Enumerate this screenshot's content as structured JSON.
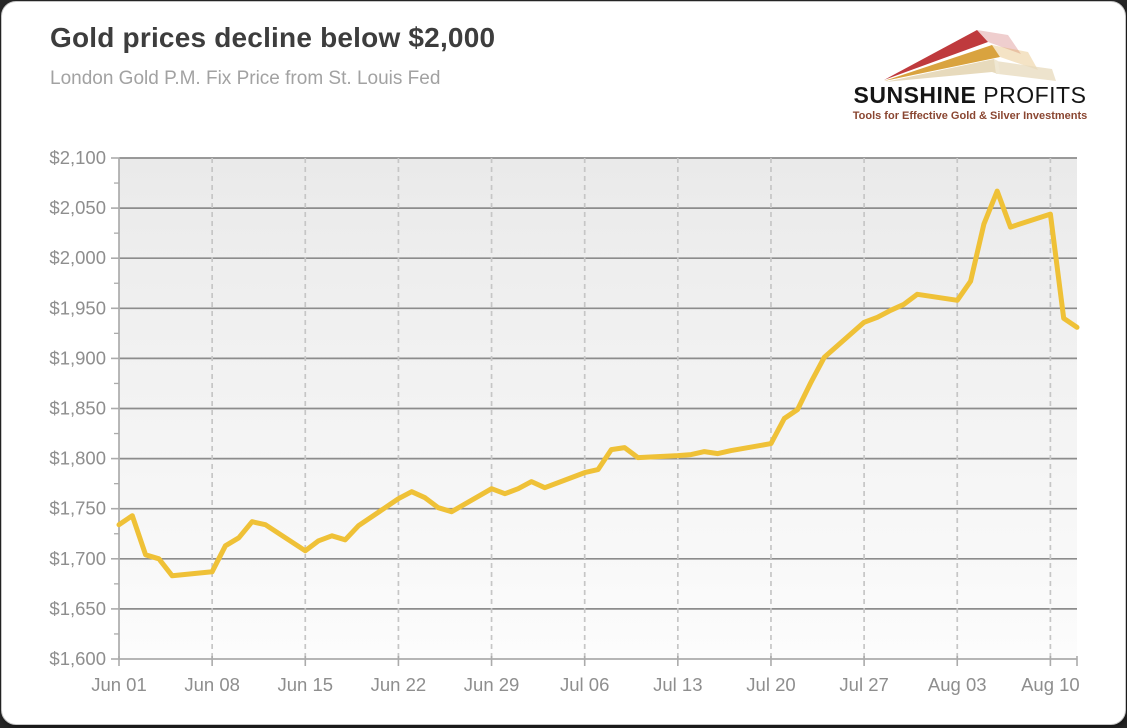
{
  "page": {
    "title": "Gold prices decline below $2,000",
    "subtitle": "London Gold P.M. Fix Price from St. Louis Fed"
  },
  "logo": {
    "brand_bold": "SUNSHINE",
    "brand_regular": " PROFITS",
    "tagline": "Tools for Effective Gold & Silver Investments",
    "colors": {
      "ray_red": "#bf3a3d",
      "ray_gold": "#d9a33f",
      "ray_cream": "#e7dabc",
      "text": "#151515",
      "tagline": "#8a4631"
    }
  },
  "chart_data": {
    "type": "line",
    "title": "Gold prices decline below $2,000",
    "subtitle": "London Gold P.M. Fix Price from St. Louis Fed",
    "legend": "none",
    "grid": {
      "horizontal": "solid",
      "vertical": "dashed"
    },
    "x_axis": {
      "tick_labels": [
        "Jun 01",
        "Jun 08",
        "Jun 15",
        "Jun 22",
        "Jun 29",
        "Jul 06",
        "Jul 13",
        "Jul 20",
        "Jul 27",
        "Aug 03",
        "Aug 10"
      ],
      "tick_days": [
        0,
        7,
        14,
        21,
        28,
        35,
        42,
        49,
        56,
        63,
        70
      ],
      "total_days": 72
    },
    "y_axis": {
      "min": 1600,
      "max": 2100,
      "step": 50,
      "minor_step": 25,
      "unit": "USD",
      "tick_labels": [
        "$2,100",
        "$2,050",
        "$2,000",
        "$1,950",
        "$1,900",
        "$1,850",
        "$1,800",
        "$1,750",
        "$1,700",
        "$1,650",
        "$1,600"
      ]
    },
    "series": [
      {
        "name": "London Gold P.M. Fix Price",
        "color": "#efc137",
        "points": [
          {
            "date": "Jun 01",
            "day": 0,
            "value": 1734
          },
          {
            "date": "Jun 02",
            "day": 1,
            "value": 1743
          },
          {
            "date": "Jun 03",
            "day": 2,
            "value": 1704
          },
          {
            "date": "Jun 04",
            "day": 3,
            "value": 1700
          },
          {
            "date": "Jun 05",
            "day": 4,
            "value": 1683
          },
          {
            "date": "Jun 08",
            "day": 7,
            "value": 1687
          },
          {
            "date": "Jun 09",
            "day": 8,
            "value": 1713
          },
          {
            "date": "Jun 10",
            "day": 9,
            "value": 1721
          },
          {
            "date": "Jun 11",
            "day": 10,
            "value": 1737
          },
          {
            "date": "Jun 12",
            "day": 11,
            "value": 1734
          },
          {
            "date": "Jun 15",
            "day": 14,
            "value": 1708
          },
          {
            "date": "Jun 16",
            "day": 15,
            "value": 1718
          },
          {
            "date": "Jun 17",
            "day": 16,
            "value": 1723
          },
          {
            "date": "Jun 18",
            "day": 17,
            "value": 1719
          },
          {
            "date": "Jun 19",
            "day": 18,
            "value": 1733
          },
          {
            "date": "Jun 22",
            "day": 21,
            "value": 1760
          },
          {
            "date": "Jun 23",
            "day": 22,
            "value": 1767
          },
          {
            "date": "Jun 24",
            "day": 23,
            "value": 1761
          },
          {
            "date": "Jun 25",
            "day": 24,
            "value": 1751
          },
          {
            "date": "Jun 26",
            "day": 25,
            "value": 1747
          },
          {
            "date": "Jun 29",
            "day": 28,
            "value": 1770
          },
          {
            "date": "Jun 30",
            "day": 29,
            "value": 1765
          },
          {
            "date": "Jul 01",
            "day": 30,
            "value": 1770
          },
          {
            "date": "Jul 02",
            "day": 31,
            "value": 1777
          },
          {
            "date": "Jul 03",
            "day": 32,
            "value": 1771
          },
          {
            "date": "Jul 06",
            "day": 35,
            "value": 1786
          },
          {
            "date": "Jul 07",
            "day": 36,
            "value": 1789
          },
          {
            "date": "Jul 08",
            "day": 37,
            "value": 1809
          },
          {
            "date": "Jul 09",
            "day": 38,
            "value": 1811
          },
          {
            "date": "Jul 10",
            "day": 39,
            "value": 1801
          },
          {
            "date": "Jul 13",
            "day": 42,
            "value": 1803
          },
          {
            "date": "Jul 14",
            "day": 43,
            "value": 1804
          },
          {
            "date": "Jul 15",
            "day": 44,
            "value": 1807
          },
          {
            "date": "Jul 16",
            "day": 45,
            "value": 1805
          },
          {
            "date": "Jul 17",
            "day": 46,
            "value": 1808
          },
          {
            "date": "Jul 20",
            "day": 49,
            "value": 1815
          },
          {
            "date": "Jul 21",
            "day": 50,
            "value": 1840
          },
          {
            "date": "Jul 22",
            "day": 51,
            "value": 1849
          },
          {
            "date": "Jul 23",
            "day": 52,
            "value": 1876
          },
          {
            "date": "Jul 24",
            "day": 53,
            "value": 1901
          },
          {
            "date": "Jul 27",
            "day": 56,
            "value": 1936
          },
          {
            "date": "Jul 28",
            "day": 57,
            "value": 1941
          },
          {
            "date": "Jul 29",
            "day": 58,
            "value": 1948
          },
          {
            "date": "Jul 30",
            "day": 59,
            "value": 1954
          },
          {
            "date": "Jul 31",
            "day": 60,
            "value": 1964
          },
          {
            "date": "Aug 03",
            "day": 63,
            "value": 1958
          },
          {
            "date": "Aug 04",
            "day": 64,
            "value": 1977
          },
          {
            "date": "Aug 05",
            "day": 65,
            "value": 2034
          },
          {
            "date": "Aug 06",
            "day": 66,
            "value": 2067
          },
          {
            "date": "Aug 07",
            "day": 67,
            "value": 2031
          },
          {
            "date": "Aug 10",
            "day": 70,
            "value": 2044
          },
          {
            "date": "Aug 11",
            "day": 71,
            "value": 1940
          },
          {
            "date": "Aug 12",
            "day": 72,
            "value": 1931
          }
        ]
      }
    ],
    "plot_colors": {
      "bg_top": "#eaeaea",
      "bg_bottom": "#fcfcfc",
      "h_grid": "#8c8c8c",
      "v_grid": "#c6c6c6",
      "axis": "#ababab",
      "label": "#8e8e8e"
    }
  }
}
